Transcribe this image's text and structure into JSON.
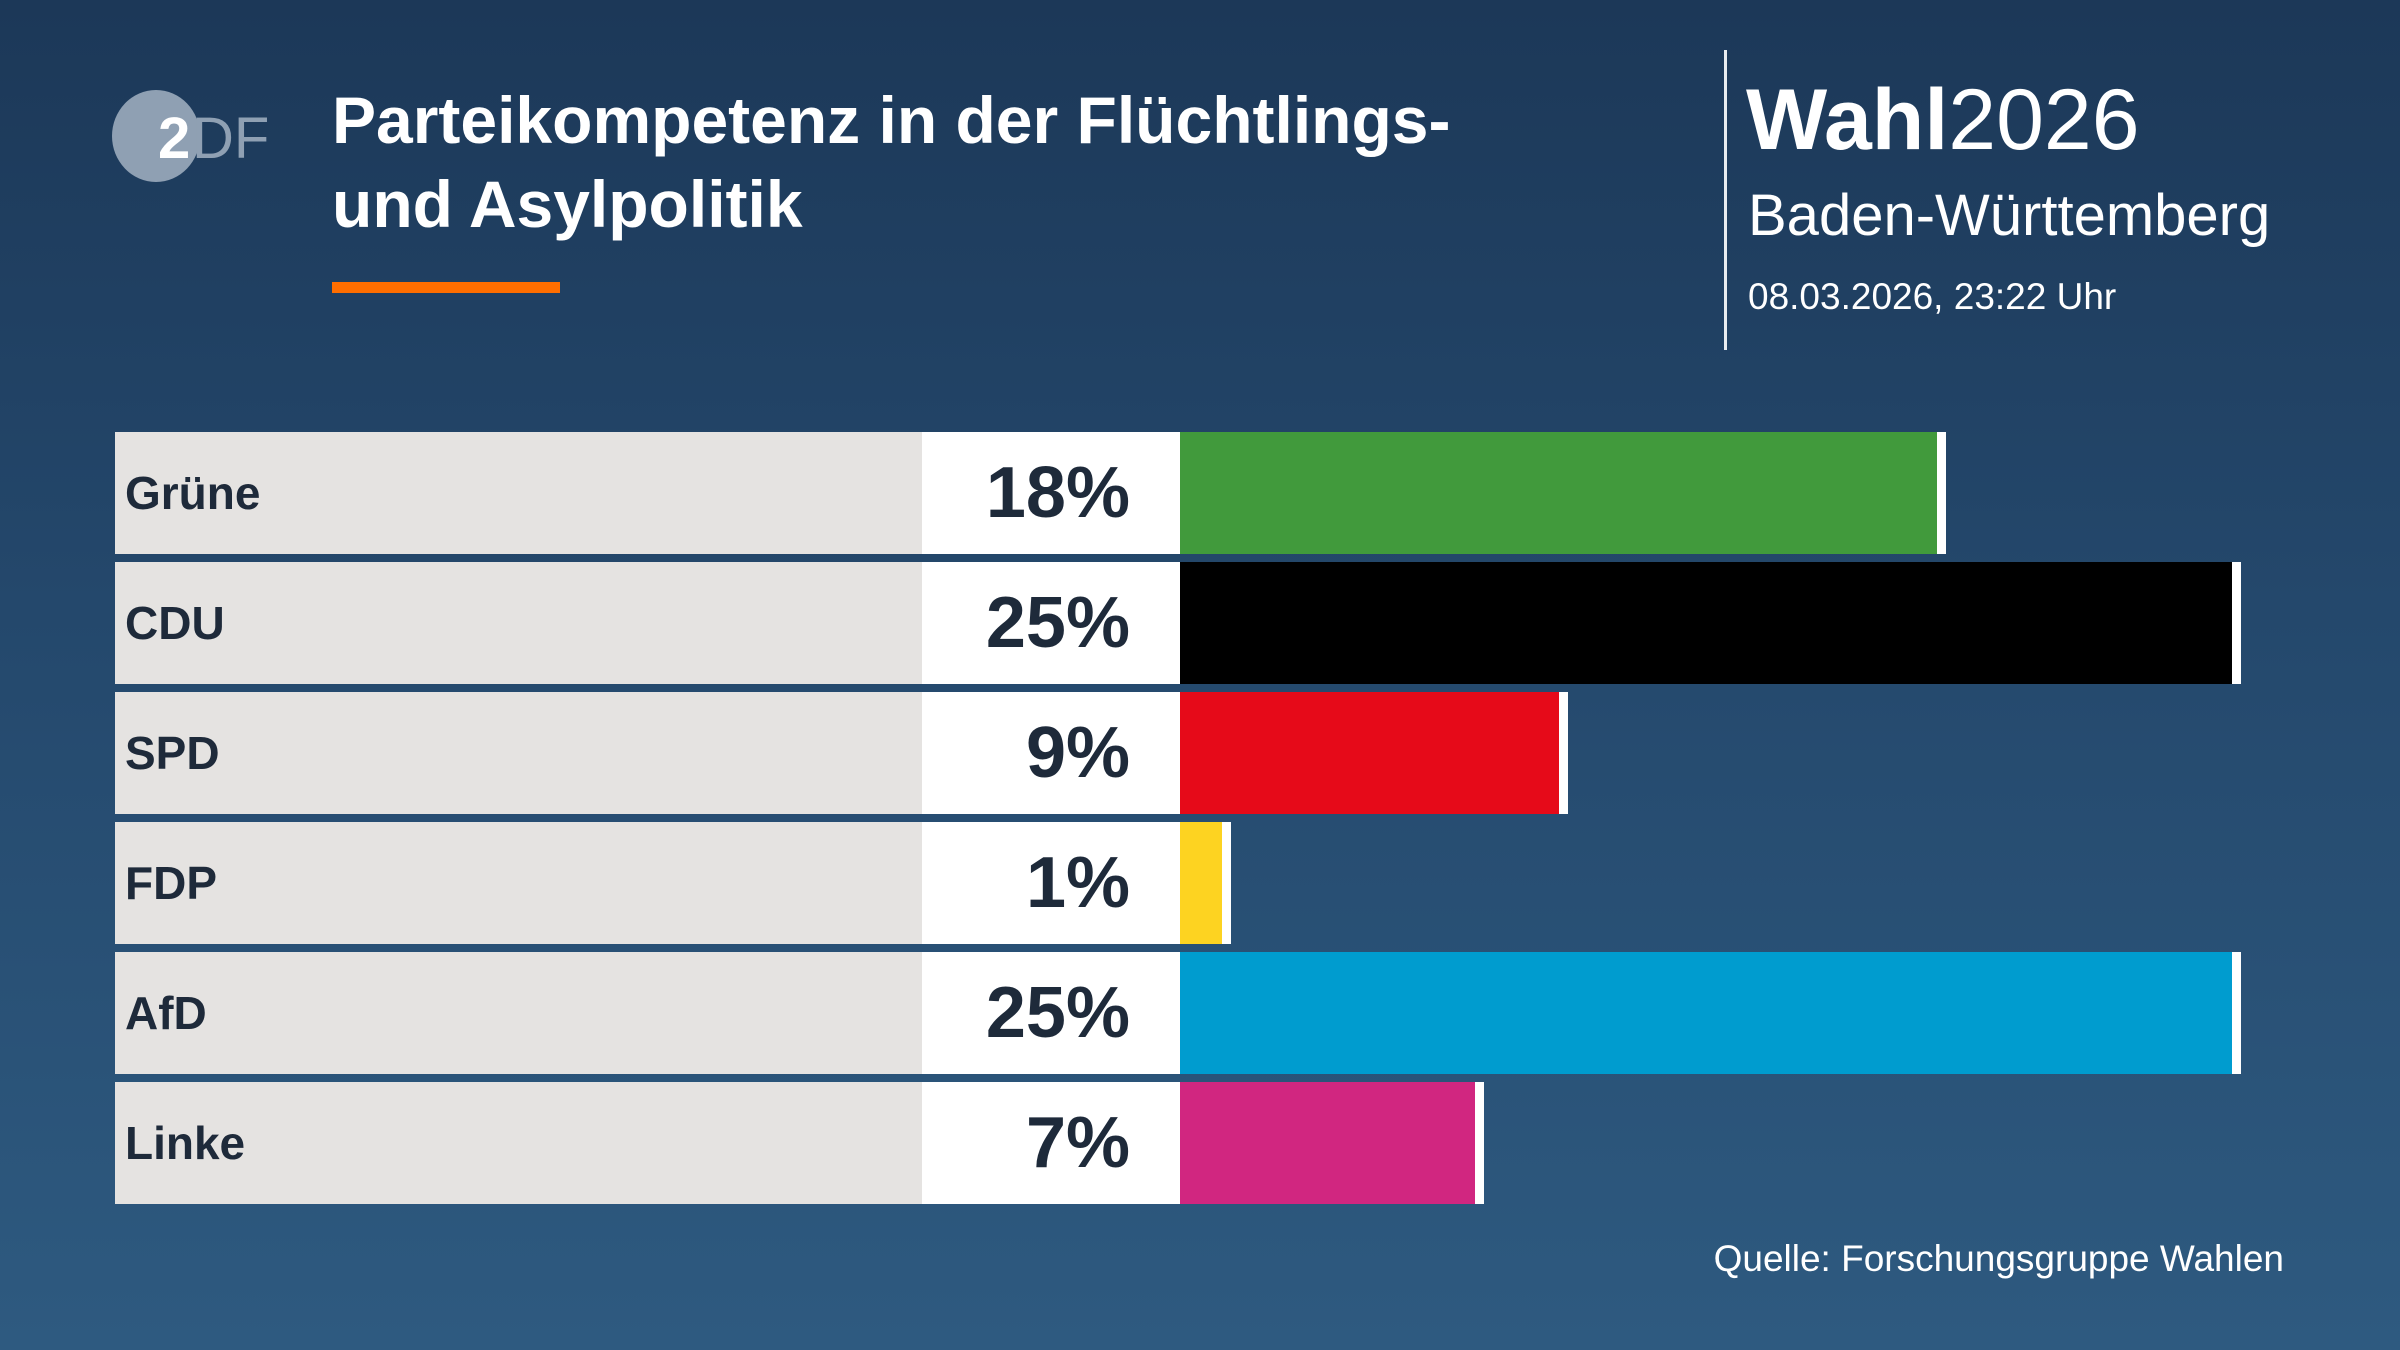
{
  "header": {
    "logo_text": "ZDF",
    "title_line1": "Parteikompetenz in der Flüchtlings-",
    "title_line2": "und Asylpolitik",
    "brand_bold": "Wahl",
    "brand_year": "2026",
    "region": "Baden-Württemberg",
    "date": "08.03.2026, 23:22 Uhr"
  },
  "source": "Quelle: Forschungsgruppe Wahlen",
  "colors": {
    "accent": "#ff6e00",
    "background_top": "#1c3858",
    "background_bottom": "#2e5a80"
  },
  "chart_data": {
    "type": "bar",
    "orientation": "horizontal",
    "title": "Parteikompetenz in der Flüchtlings- und Asylpolitik",
    "categories": [
      "Grüne",
      "CDU",
      "SPD",
      "FDP",
      "AfD",
      "Linke"
    ],
    "values": [
      18,
      25,
      9,
      1,
      25,
      7
    ],
    "labels": [
      "18%",
      "25%",
      "9%",
      "1%",
      "25%",
      "7%"
    ],
    "colors": [
      "#419a3c",
      "#000000",
      "#e60a19",
      "#fdd321",
      "#009ccf",
      "#d12680"
    ],
    "unit": "%",
    "grid": false
  }
}
